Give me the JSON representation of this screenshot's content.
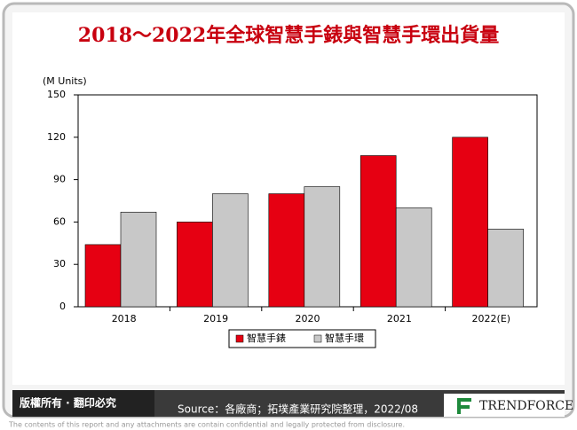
{
  "chart_data": {
    "type": "bar",
    "title": "2018～2022年全球智慧手錶與智慧手環出貨量",
    "y_label": "(M Units)",
    "categories": [
      "2018",
      "2019",
      "2020",
      "2021",
      "2022(E)"
    ],
    "series": [
      {
        "name": "智慧手錶",
        "color": "#e60012",
        "values": [
          44,
          60,
          80,
          107,
          120
        ]
      },
      {
        "name": "智慧手環",
        "color": "#c8c8c8",
        "values": [
          67,
          80,
          85,
          70,
          55
        ]
      }
    ],
    "ylim": [
      0,
      150
    ],
    "yticks": [
      0,
      30,
      60,
      90,
      120,
      150
    ],
    "grid": false
  },
  "footer": {
    "rights": "版權所有 · 翻印必究",
    "source": "Source：各廠商；拓墣產業研究院整理，2022/08",
    "brand": "TRENDFORCE",
    "disclaimer": "The contents of this report and any attachments are contain confidential and legally protected from disclosure."
  }
}
